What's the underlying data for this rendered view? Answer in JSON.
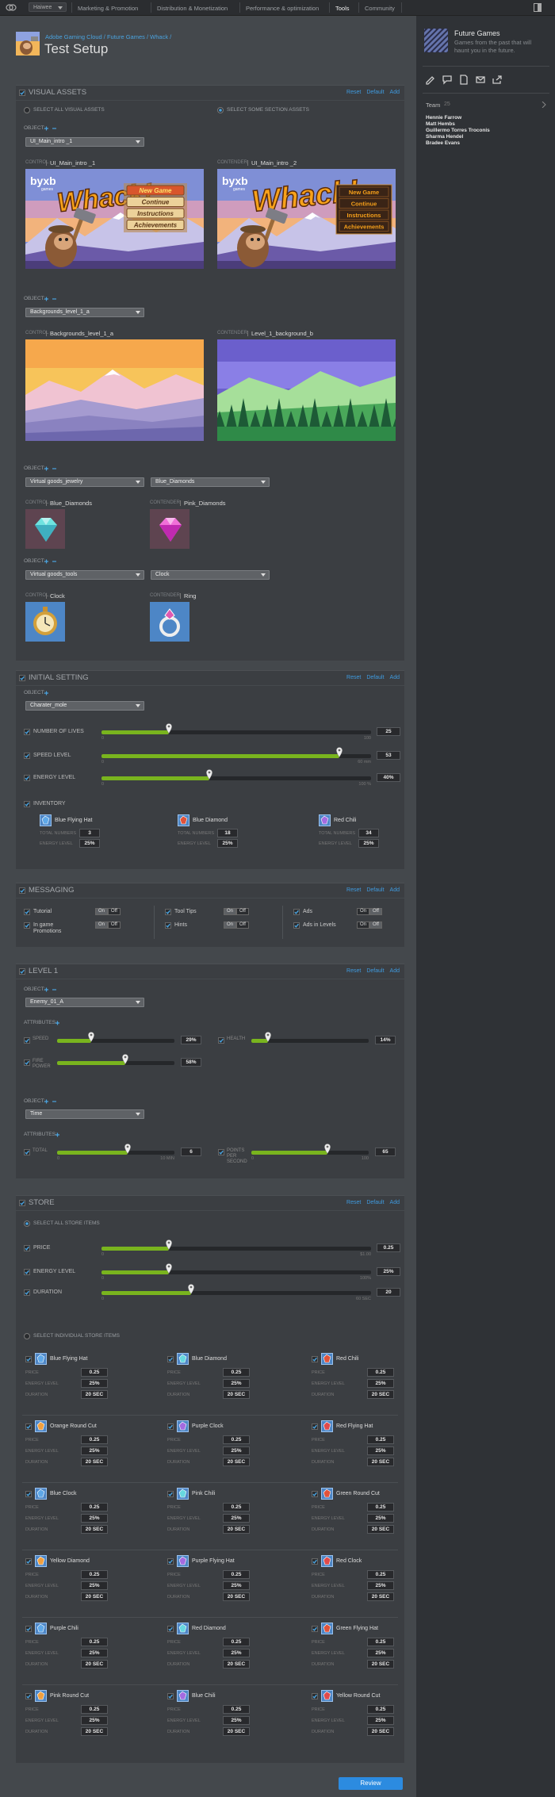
{
  "nav": {
    "menu": "Haiwee",
    "items": [
      "Marketing & Promotion",
      "Distribution & Monetization",
      "Performance & optimization",
      "Tools",
      "Community"
    ]
  },
  "header": {
    "breadcrumb": "Adobe Gaming Cloud / Future Games / Whack /",
    "title": "Test Setup"
  },
  "sidebar": {
    "title": "Future Games",
    "description": "Games from the past that will haunt you in the future.",
    "team_label": "Team",
    "team_count": 25,
    "members": [
      "Hennie Farrow",
      "Matt Hembs",
      "Guillermo Torres Troconis",
      "Sharma Hendel",
      "Bradee Evans"
    ]
  },
  "visual_assets": {
    "title": "VISUAL ASSETS",
    "actions": [
      "Reset",
      "Default",
      "Add"
    ],
    "options": [
      "SELECT ALL VISUAL ASSETS",
      "SELECT SOME SECTION ASSETS"
    ],
    "objects": [
      {
        "label": "OBJECT:",
        "dropdowns": [
          "UI_Main_intro _1"
        ],
        "control_label": "CONTROL",
        "control": "UI_Main_intro _1",
        "contender_label": "CONTENDER",
        "contender": "UI_Main_intro _2",
        "game": {
          "logo": "byxb",
          "logo_sub": "games",
          "title": "Whack!",
          "menu": [
            "New Game",
            "Continue",
            "Instructions",
            "Achievements"
          ]
        }
      },
      {
        "label": "OBJECT:",
        "dropdowns": [
          "Backgrounds_level_1_a"
        ],
        "control_label": "CONTROL",
        "control": "Backgrounds_level_1_a",
        "contender_label": "CONTENDER",
        "contender": "Level_1_background_b"
      },
      {
        "label": "OBJECT:",
        "dropdowns": [
          "Virtual goods_jewelry",
          "Blue_Diamonds"
        ],
        "control_label": "CONTROL",
        "control": "Blue_Diamonds",
        "contender_label": "CONTENDER",
        "contender": "Pink_Diamonds"
      },
      {
        "label": "OBJECT:",
        "dropdowns": [
          "Virtual goods_tools",
          "Clock"
        ],
        "control_label": "CONTROL",
        "control": "Clock",
        "contender_label": "CONTENDER",
        "contender": "Ring"
      }
    ]
  },
  "initial_setting": {
    "title": "INITIAL SETTING",
    "actions": [
      "Reset",
      "Default",
      "Add"
    ],
    "object_label": "OBJECT:",
    "dropdown": "Charater_mole",
    "sliders": [
      {
        "label": "NUMBER OF LIVES",
        "value": 25,
        "min": 0,
        "max": 100
      },
      {
        "label": "SPEED LEVEL",
        "value": 53,
        "min": 0,
        "max": 60,
        "max_label": "60 mm"
      },
      {
        "label": "ENERGY LEVEL",
        "value": 40,
        "value_label": "40%",
        "min": 0,
        "max": 100,
        "max_label": "100 %"
      }
    ],
    "inventory_label": "INVENTORY",
    "inventory": [
      {
        "name": "Blue Flying Hat",
        "total_label": "TOTAL NUMBERS",
        "total": 3,
        "energy_label": "ENERGY LEVEL",
        "energy": "25%"
      },
      {
        "name": "Blue Diamond",
        "total_label": "TOTAL NUMBERS",
        "total": 18,
        "energy_label": "ENERGY LEVEL",
        "energy": "25%"
      },
      {
        "name": "Red Chili",
        "total_label": "TOTAL NUMBERS",
        "total": 34,
        "energy_label": "ENERGY LEVEL",
        "energy": "25%"
      }
    ]
  },
  "messaging": {
    "title": "MESSAGING",
    "actions": [
      "Reset",
      "Default",
      "Add"
    ],
    "on_label": "On",
    "off_label": "Off",
    "toggles": [
      [
        "Tutorial",
        "In game Promotions"
      ],
      [
        "Tool Tips",
        "Hints"
      ],
      [
        "Ads",
        "Ads in Levels"
      ]
    ]
  },
  "level_1": {
    "title": "LEVEL 1",
    "actions": [
      "Reset",
      "Default",
      "Add"
    ],
    "objects": [
      {
        "label": "OBJECT:",
        "dropdown": "Enemy_01_A",
        "attributes_label": "ATTRIBUTES:",
        "attributes": [
          {
            "label": "SPEED",
            "value": 29,
            "value_label": "29%"
          },
          {
            "label": "HEALTH",
            "value": 14,
            "value_label": "14%"
          },
          {
            "label": "FIRE POWER",
            "value": 58,
            "value_label": "58%"
          }
        ]
      },
      {
        "label": "OBJECT:",
        "dropdown": "Time",
        "attributes_label": "ATTRIBUTES:",
        "attributes": [
          {
            "label": "TOTAL",
            "value": 6,
            "min": 0,
            "max": 10,
            "max_label": "10 MIN"
          },
          {
            "label": "POINTS PER SECOND",
            "value": 65,
            "min": 0,
            "max": 100
          }
        ]
      }
    ]
  },
  "store": {
    "title": "STORE",
    "actions": [
      "Reset",
      "Default",
      "Add"
    ],
    "select_all": "SELECT ALL STORE ITEMS",
    "sliders": [
      {
        "label": "PRICE",
        "value": 0.25,
        "min": 0,
        "max": 1,
        "max_label": "$1.00"
      },
      {
        "label": "ENERGY LEVEL",
        "value": 25,
        "value_label": "25%",
        "min": 0,
        "max": 100,
        "max_label": "100%"
      },
      {
        "label": "DURATION",
        "value": 20,
        "min": 0,
        "max": 60,
        "max_label": "60 SEC"
      }
    ],
    "select_individual": "SELECT INDIVIDUAL STORE ITEMS",
    "field_labels": [
      "PRICE",
      "ENERGY LEVEL",
      "DURATION"
    ],
    "items": [
      {
        "name": "Blue Flying Hat",
        "price": 0.25,
        "energy": "25%",
        "duration": "20 SEC"
      },
      {
        "name": "Blue Diamond",
        "price": 0.25,
        "energy": "25%",
        "duration": "20 SEC"
      },
      {
        "name": "Red Chili",
        "price": 0.25,
        "energy": "25%",
        "duration": "20 SEC"
      },
      {
        "name": "Orange Round Cut",
        "price": 0.25,
        "energy": "25%",
        "duration": "20 SEC"
      },
      {
        "name": "Purple Clock",
        "price": 0.25,
        "energy": "25%",
        "duration": "20 SEC"
      },
      {
        "name": "Red Flying Hat",
        "price": 0.25,
        "energy": "25%",
        "duration": "20 SEC"
      },
      {
        "name": "Blue Clock",
        "price": 0.25,
        "energy": "25%",
        "duration": "20 SEC"
      },
      {
        "name": "Pink Chili",
        "price": 0.25,
        "energy": "25%",
        "duration": "20 SEC"
      },
      {
        "name": "Green Round Cut",
        "price": 0.25,
        "energy": "25%",
        "duration": "20 SEC"
      },
      {
        "name": "Yellow Diamond",
        "price": 0.25,
        "energy": "25%",
        "duration": "20 SEC"
      },
      {
        "name": "Purple Flying Hat",
        "price": 0.25,
        "energy": "25%",
        "duration": "20 SEC"
      },
      {
        "name": "Red Clock",
        "price": 0.25,
        "energy": "25%",
        "duration": "20 SEC"
      },
      {
        "name": "Purple Chili",
        "price": 0.25,
        "energy": "25%",
        "duration": "20 SEC"
      },
      {
        "name": "Red Diamond",
        "price": 0.25,
        "energy": "25%",
        "duration": "20 SEC"
      },
      {
        "name": "Green Flying Hat",
        "price": 0.25,
        "energy": "25%",
        "duration": "20 SEC"
      },
      {
        "name": "Pink Round Cut",
        "price": 0.25,
        "energy": "25%",
        "duration": "20 SEC"
      },
      {
        "name": "Blue Chili",
        "price": 0.25,
        "energy": "25%",
        "duration": "20 SEC"
      },
      {
        "name": "Yellow Round Cut",
        "price": 0.25,
        "energy": "25%",
        "duration": "20 SEC"
      }
    ]
  },
  "review": "Review"
}
